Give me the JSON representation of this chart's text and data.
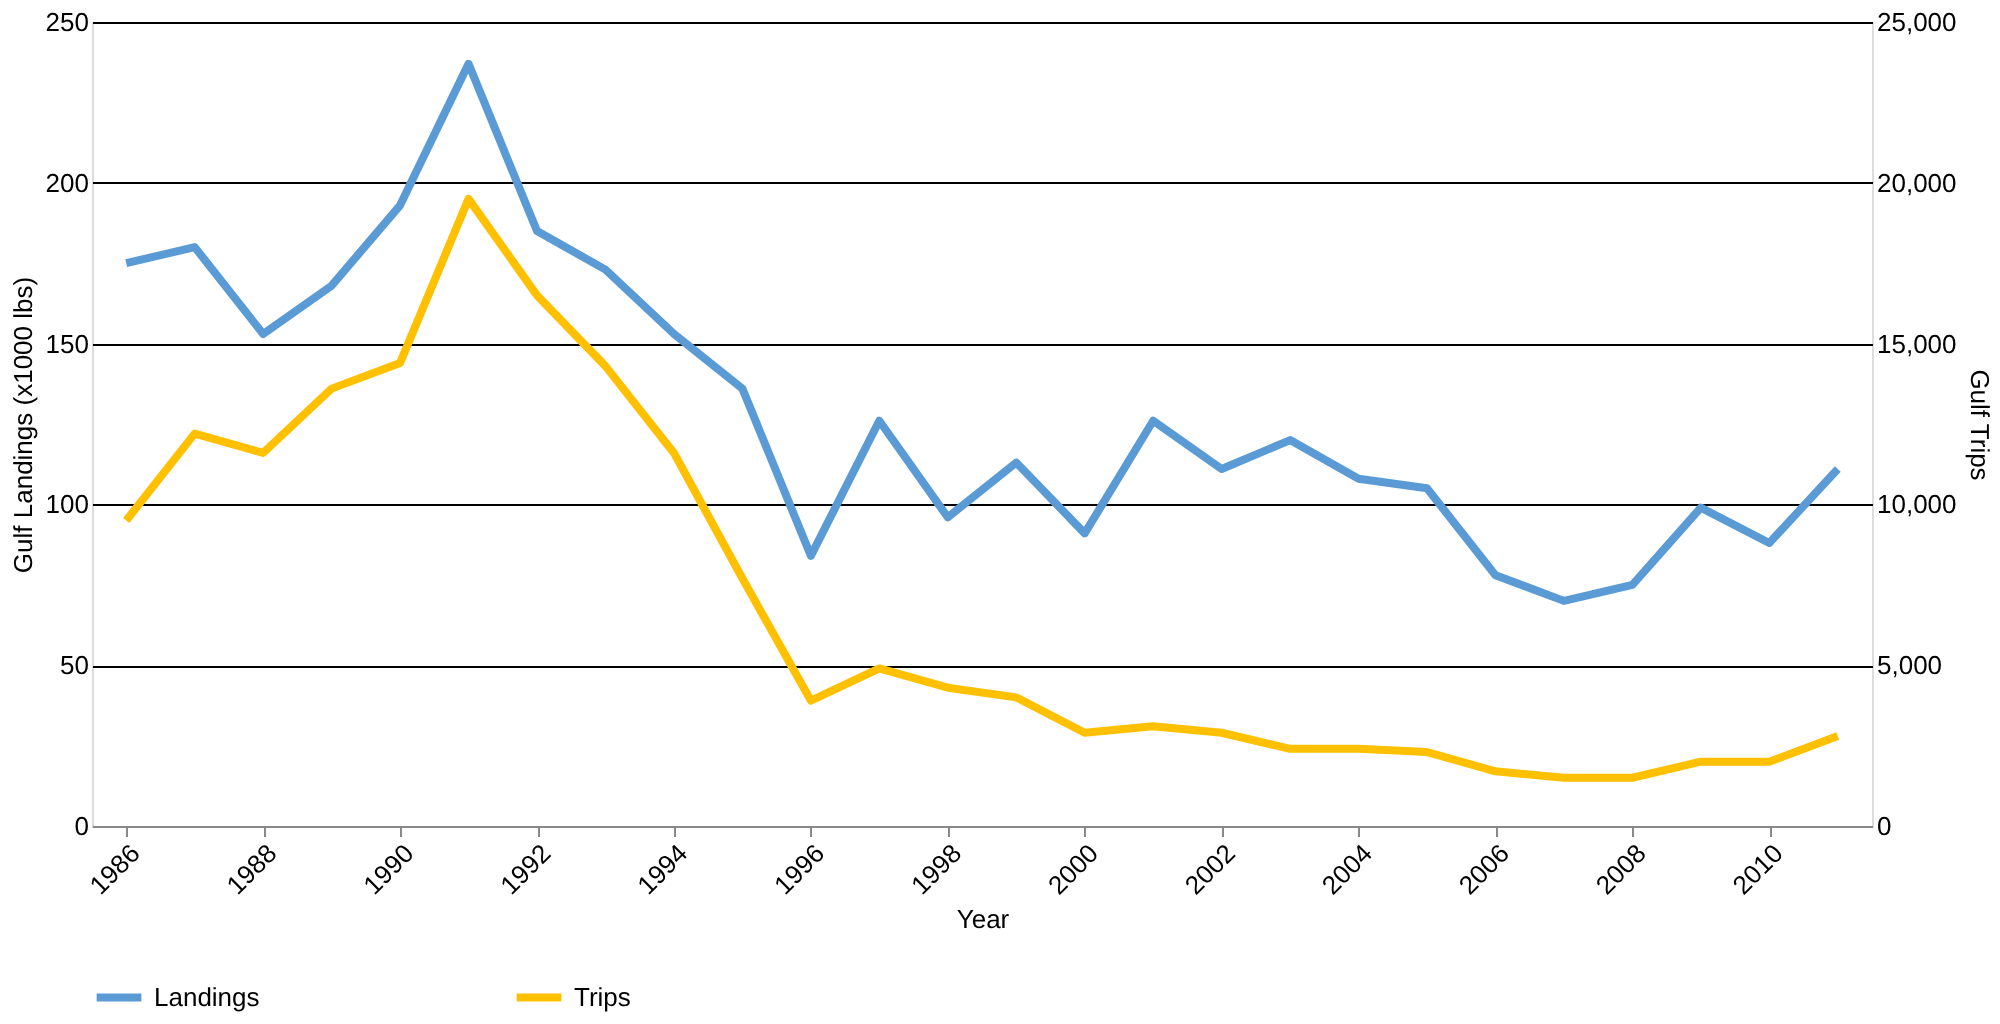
{
  "chart_data": {
    "type": "line",
    "xlabel": "Year",
    "ylabel": "Gulf Landings (x1000 lbs)",
    "y2label": "Gulf Trips",
    "x": [
      1986,
      1987,
      1988,
      1989,
      1990,
      1991,
      1992,
      1993,
      1994,
      1995,
      1996,
      1997,
      1998,
      1999,
      2000,
      2001,
      2002,
      2003,
      2004,
      2005,
      2006,
      2007,
      2008,
      2009,
      2010,
      2011
    ],
    "xlim": [
      1985.5,
      2011.5
    ],
    "xticks": [
      1986,
      1988,
      1990,
      1992,
      1994,
      1996,
      1998,
      2000,
      2002,
      2004,
      2006,
      2008,
      2010
    ],
    "ylim": [
      0,
      250
    ],
    "yticks": [
      0,
      50,
      100,
      150,
      200,
      250
    ],
    "y2lim": [
      0,
      25000
    ],
    "y2ticks": [
      {
        "value": 0,
        "label": "0"
      },
      {
        "value": 5000,
        "label": "5,000"
      },
      {
        "value": 10000,
        "label": "10,000"
      },
      {
        "value": 15000,
        "label": "15,000"
      },
      {
        "value": 20000,
        "label": "20,000"
      },
      {
        "value": 25000,
        "label": "25,000"
      }
    ],
    "series": [
      {
        "name": "Landings",
        "color": "#5b9bd5",
        "values": [
          175,
          180,
          153,
          168,
          193,
          237,
          185,
          173,
          153,
          136,
          84,
          126,
          96,
          113,
          91,
          126,
          111,
          120,
          108,
          105,
          78,
          70,
          75,
          99,
          88,
          111
        ]
      },
      {
        "name": "Trips",
        "color": "#ffc000",
        "axis": "y2",
        "values": [
          9500,
          12200,
          11600,
          13600,
          14400,
          19500,
          16500,
          14300,
          11600,
          7700,
          3900,
          4900,
          4300,
          4000,
          2900,
          3100,
          2900,
          2400,
          2400,
          2300,
          1700,
          1500,
          1500,
          2000,
          2000,
          2800
        ]
      }
    ],
    "grid": "y",
    "legend": "bottom",
    "marker": "none",
    "line_style": "solid"
  }
}
